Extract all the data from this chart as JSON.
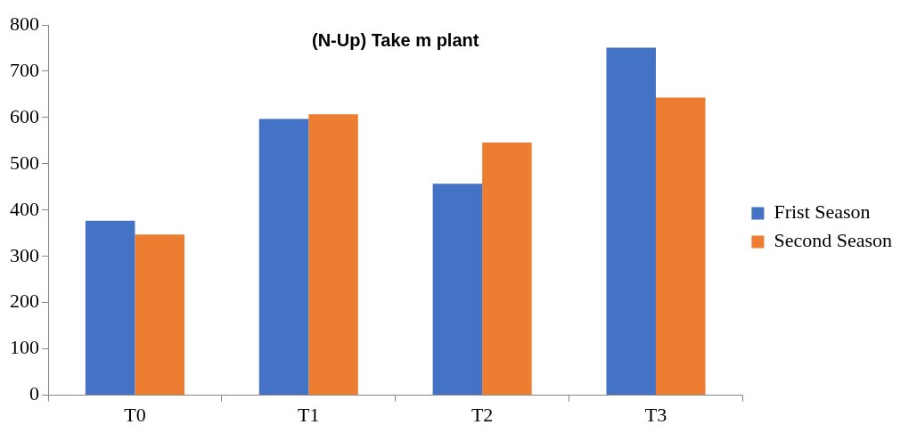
{
  "chart_data": {
    "type": "bar",
    "title": "(N-Up) Take m plant",
    "categories": [
      "T0",
      "T1",
      "T2",
      "T3"
    ],
    "series": [
      {
        "name": "Frist Season",
        "color": "#4472c4",
        "values": [
          377,
          597,
          457,
          751
        ]
      },
      {
        "name": "Second Season",
        "color": "#ed7d31",
        "values": [
          347,
          607,
          546,
          643
        ]
      }
    ],
    "ylim": [
      0,
      800
    ],
    "yticks": [
      0,
      100,
      200,
      300,
      400,
      500,
      600,
      700,
      800
    ],
    "grid": false,
    "legend": "right"
  }
}
